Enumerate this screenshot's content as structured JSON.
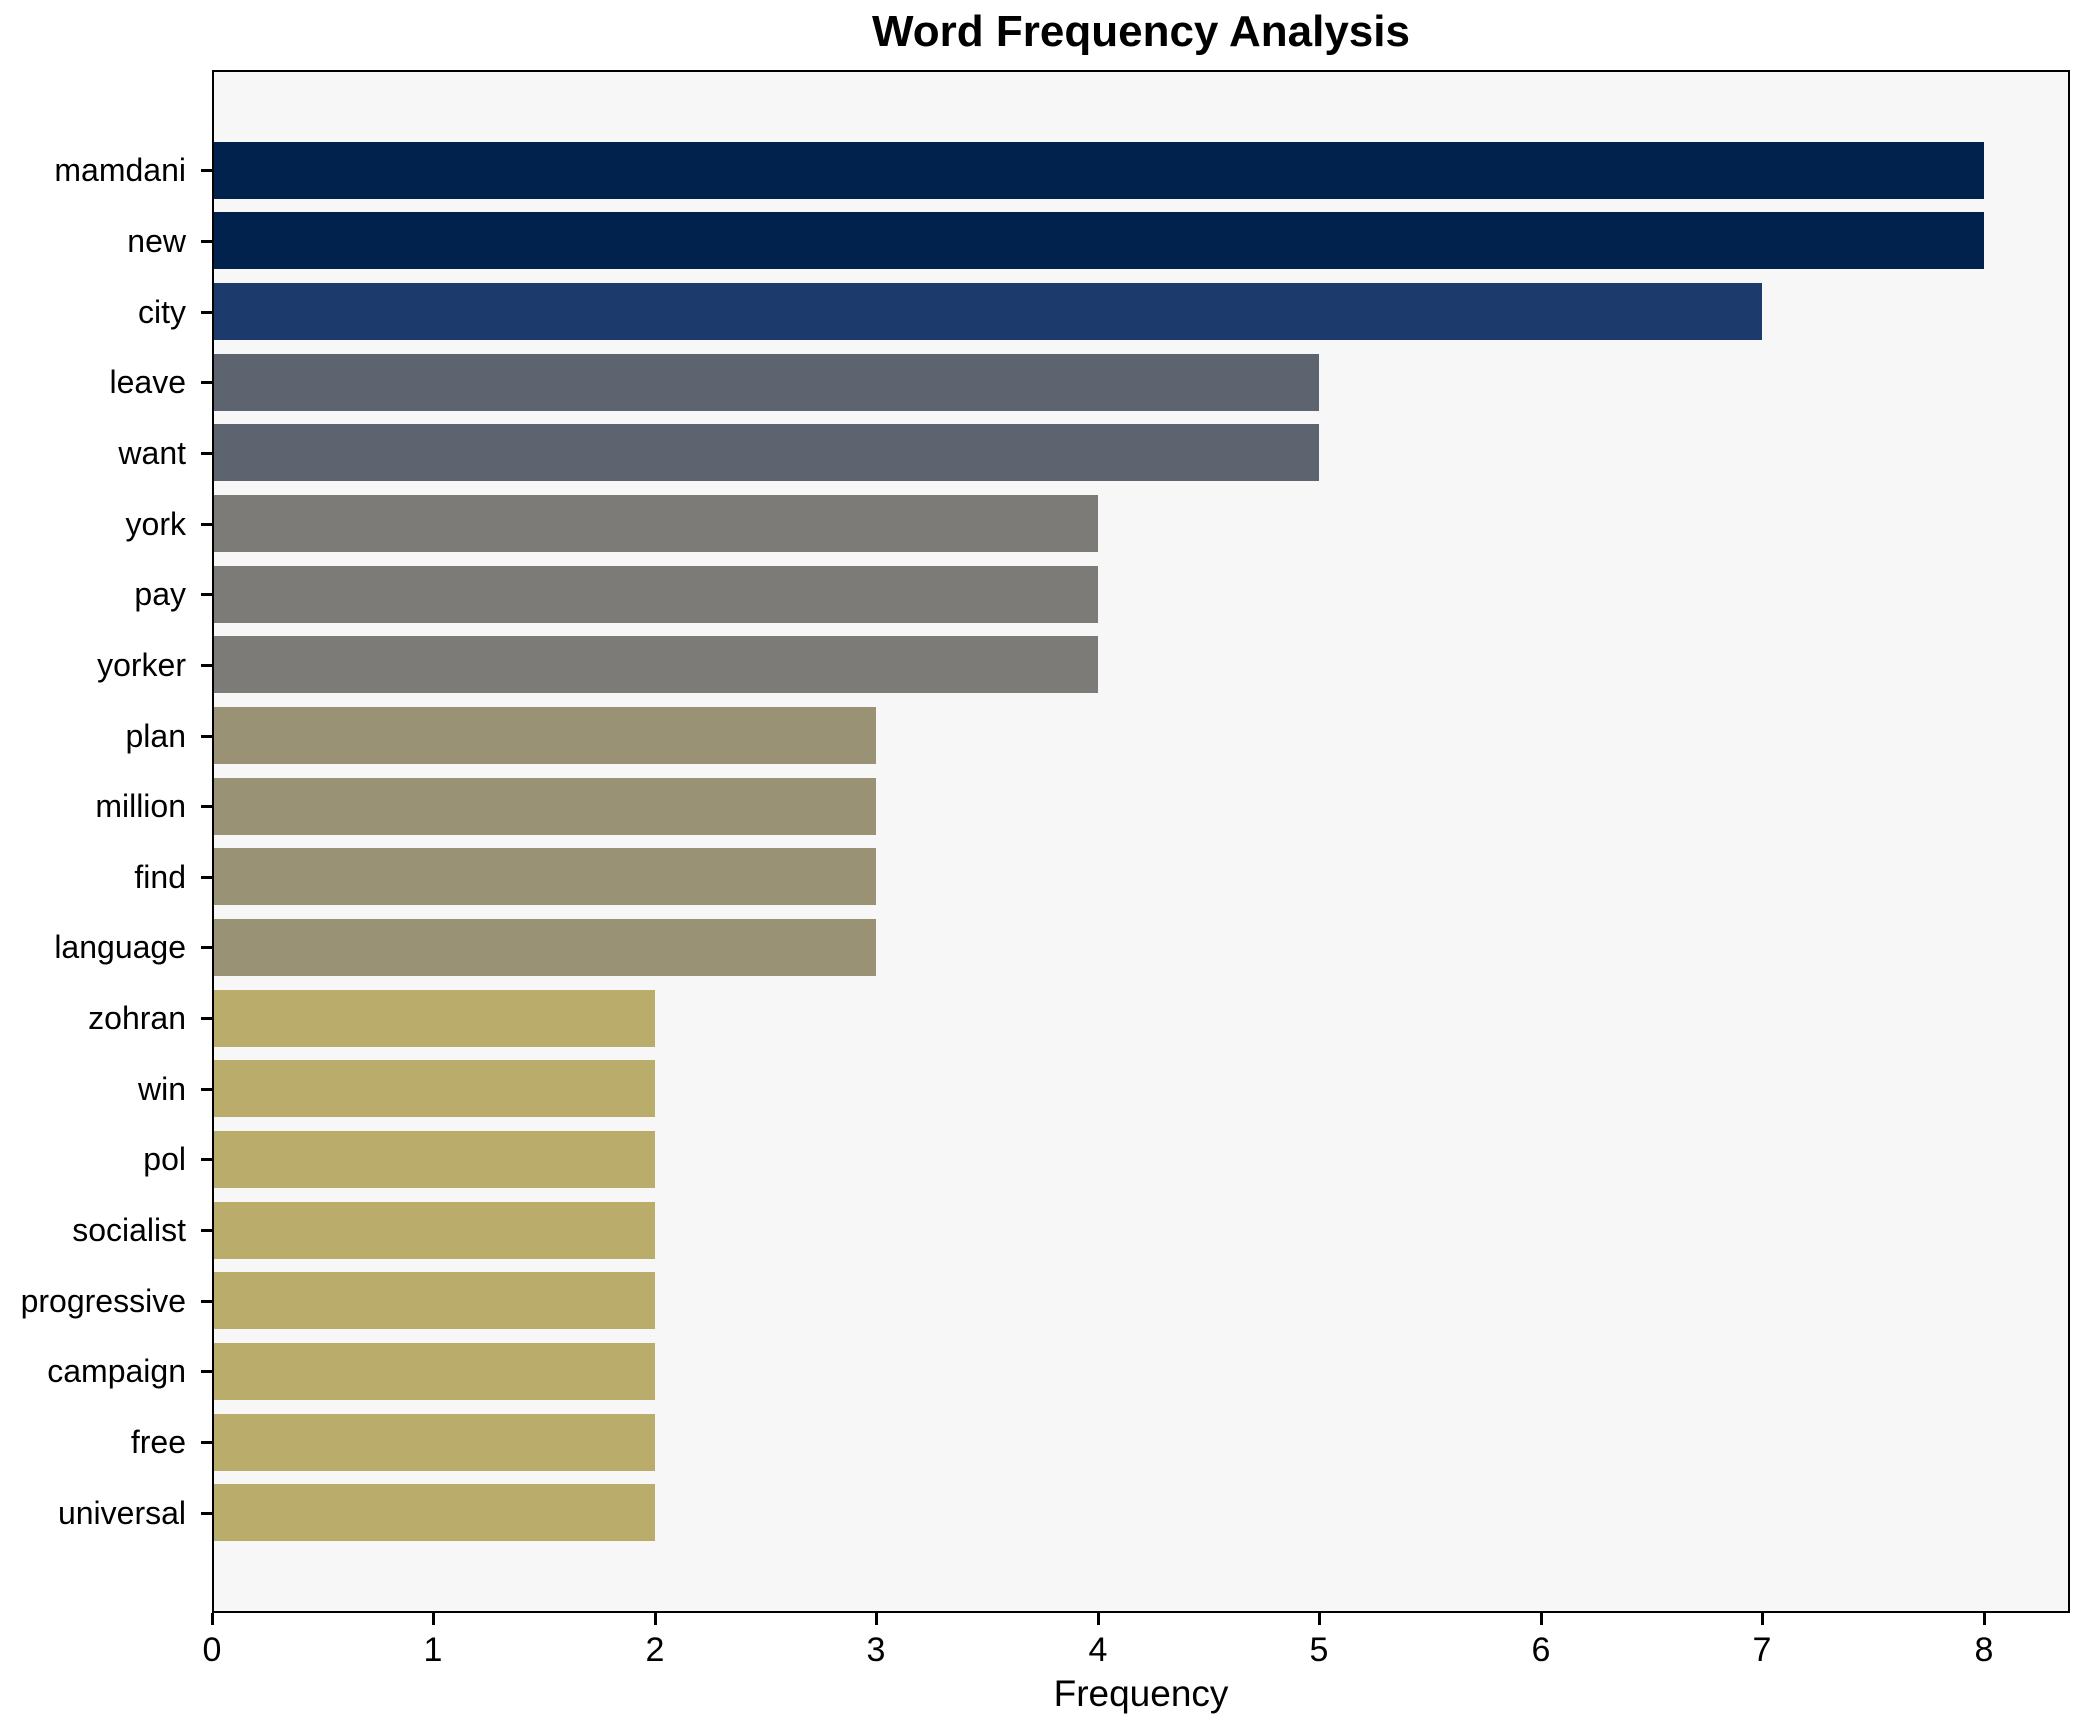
{
  "chart_data": {
    "type": "bar",
    "orientation": "horizontal",
    "title": "Word Frequency Analysis",
    "xlabel": "Frequency",
    "ylabel": "",
    "grid": false,
    "legend": null,
    "xlim": [
      0,
      8.39
    ],
    "xticks": [
      0,
      1,
      2,
      3,
      4,
      5,
      6,
      7,
      8
    ],
    "categories": [
      "mamdani",
      "new",
      "city",
      "leave",
      "want",
      "york",
      "pay",
      "yorker",
      "plan",
      "million",
      "find",
      "language",
      "zohran",
      "win",
      "pol",
      "socialist",
      "progressive",
      "campaign",
      "free",
      "universal"
    ],
    "values": [
      8,
      8,
      7,
      5,
      5,
      4,
      4,
      4,
      3,
      3,
      3,
      3,
      2,
      2,
      2,
      2,
      2,
      2,
      2,
      2
    ],
    "bar_colors": [
      "#00224D",
      "#00224D",
      "#1C3A6C",
      "#5E6370",
      "#5E6370",
      "#7C7B78",
      "#7C7B78",
      "#7C7B78",
      "#999274",
      "#999274",
      "#999274",
      "#999274",
      "#BAAD6C",
      "#BAAD6C",
      "#BAAD6C",
      "#BAAD6C",
      "#BAAD6C",
      "#BAAD6C",
      "#BAAD6C",
      "#BAAD6C"
    ]
  },
  "style": {
    "figure_bg": "#FFFFFF",
    "plot_bg": "#F7F7F7",
    "spine_color": "#000000",
    "text_color": "#000000"
  }
}
